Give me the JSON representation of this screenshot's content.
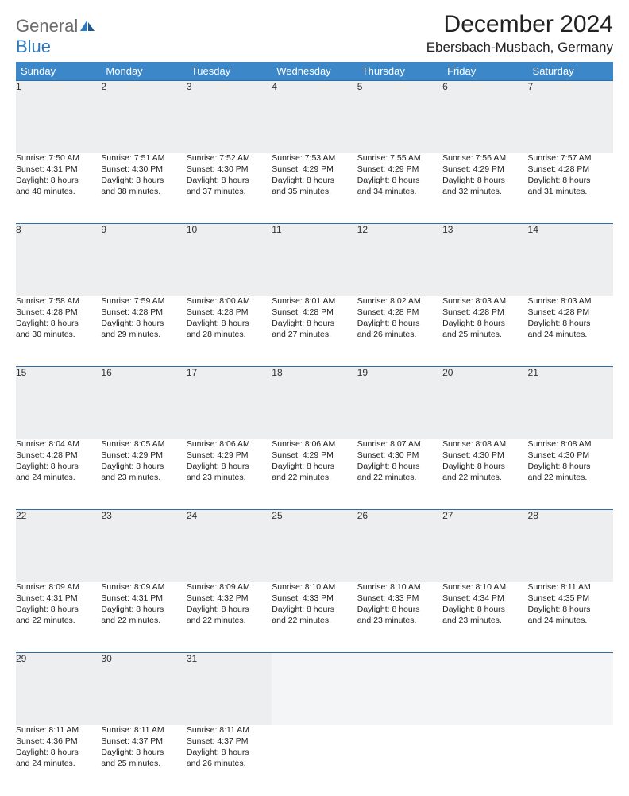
{
  "logo": {
    "part1": "General",
    "part2": "Blue"
  },
  "title": "December 2024",
  "location": "Ebersbach-Musbach, Germany",
  "colors": {
    "header_bg": "#3c87c7",
    "header_text": "#ffffff",
    "daynum_bg": "#eceef0",
    "border": "#2f6da3",
    "logo_gray": "#6b6b6b",
    "logo_blue": "#2f78bd"
  },
  "day_headers": [
    "Sunday",
    "Monday",
    "Tuesday",
    "Wednesday",
    "Thursday",
    "Friday",
    "Saturday"
  ],
  "weeks": [
    {
      "nums": [
        "1",
        "2",
        "3",
        "4",
        "5",
        "6",
        "7"
      ],
      "cells": [
        {
          "sunrise": "Sunrise: 7:50 AM",
          "sunset": "Sunset: 4:31 PM",
          "day1": "Daylight: 8 hours",
          "day2": "and 40 minutes."
        },
        {
          "sunrise": "Sunrise: 7:51 AM",
          "sunset": "Sunset: 4:30 PM",
          "day1": "Daylight: 8 hours",
          "day2": "and 38 minutes."
        },
        {
          "sunrise": "Sunrise: 7:52 AM",
          "sunset": "Sunset: 4:30 PM",
          "day1": "Daylight: 8 hours",
          "day2": "and 37 minutes."
        },
        {
          "sunrise": "Sunrise: 7:53 AM",
          "sunset": "Sunset: 4:29 PM",
          "day1": "Daylight: 8 hours",
          "day2": "and 35 minutes."
        },
        {
          "sunrise": "Sunrise: 7:55 AM",
          "sunset": "Sunset: 4:29 PM",
          "day1": "Daylight: 8 hours",
          "day2": "and 34 minutes."
        },
        {
          "sunrise": "Sunrise: 7:56 AM",
          "sunset": "Sunset: 4:29 PM",
          "day1": "Daylight: 8 hours",
          "day2": "and 32 minutes."
        },
        {
          "sunrise": "Sunrise: 7:57 AM",
          "sunset": "Sunset: 4:28 PM",
          "day1": "Daylight: 8 hours",
          "day2": "and 31 minutes."
        }
      ]
    },
    {
      "nums": [
        "8",
        "9",
        "10",
        "11",
        "12",
        "13",
        "14"
      ],
      "cells": [
        {
          "sunrise": "Sunrise: 7:58 AM",
          "sunset": "Sunset: 4:28 PM",
          "day1": "Daylight: 8 hours",
          "day2": "and 30 minutes."
        },
        {
          "sunrise": "Sunrise: 7:59 AM",
          "sunset": "Sunset: 4:28 PM",
          "day1": "Daylight: 8 hours",
          "day2": "and 29 minutes."
        },
        {
          "sunrise": "Sunrise: 8:00 AM",
          "sunset": "Sunset: 4:28 PM",
          "day1": "Daylight: 8 hours",
          "day2": "and 28 minutes."
        },
        {
          "sunrise": "Sunrise: 8:01 AM",
          "sunset": "Sunset: 4:28 PM",
          "day1": "Daylight: 8 hours",
          "day2": "and 27 minutes."
        },
        {
          "sunrise": "Sunrise: 8:02 AM",
          "sunset": "Sunset: 4:28 PM",
          "day1": "Daylight: 8 hours",
          "day2": "and 26 minutes."
        },
        {
          "sunrise": "Sunrise: 8:03 AM",
          "sunset": "Sunset: 4:28 PM",
          "day1": "Daylight: 8 hours",
          "day2": "and 25 minutes."
        },
        {
          "sunrise": "Sunrise: 8:03 AM",
          "sunset": "Sunset: 4:28 PM",
          "day1": "Daylight: 8 hours",
          "day2": "and 24 minutes."
        }
      ]
    },
    {
      "nums": [
        "15",
        "16",
        "17",
        "18",
        "19",
        "20",
        "21"
      ],
      "cells": [
        {
          "sunrise": "Sunrise: 8:04 AM",
          "sunset": "Sunset: 4:28 PM",
          "day1": "Daylight: 8 hours",
          "day2": "and 24 minutes."
        },
        {
          "sunrise": "Sunrise: 8:05 AM",
          "sunset": "Sunset: 4:29 PM",
          "day1": "Daylight: 8 hours",
          "day2": "and 23 minutes."
        },
        {
          "sunrise": "Sunrise: 8:06 AM",
          "sunset": "Sunset: 4:29 PM",
          "day1": "Daylight: 8 hours",
          "day2": "and 23 minutes."
        },
        {
          "sunrise": "Sunrise: 8:06 AM",
          "sunset": "Sunset: 4:29 PM",
          "day1": "Daylight: 8 hours",
          "day2": "and 22 minutes."
        },
        {
          "sunrise": "Sunrise: 8:07 AM",
          "sunset": "Sunset: 4:30 PM",
          "day1": "Daylight: 8 hours",
          "day2": "and 22 minutes."
        },
        {
          "sunrise": "Sunrise: 8:08 AM",
          "sunset": "Sunset: 4:30 PM",
          "day1": "Daylight: 8 hours",
          "day2": "and 22 minutes."
        },
        {
          "sunrise": "Sunrise: 8:08 AM",
          "sunset": "Sunset: 4:30 PM",
          "day1": "Daylight: 8 hours",
          "day2": "and 22 minutes."
        }
      ]
    },
    {
      "nums": [
        "22",
        "23",
        "24",
        "25",
        "26",
        "27",
        "28"
      ],
      "cells": [
        {
          "sunrise": "Sunrise: 8:09 AM",
          "sunset": "Sunset: 4:31 PM",
          "day1": "Daylight: 8 hours",
          "day2": "and 22 minutes."
        },
        {
          "sunrise": "Sunrise: 8:09 AM",
          "sunset": "Sunset: 4:31 PM",
          "day1": "Daylight: 8 hours",
          "day2": "and 22 minutes."
        },
        {
          "sunrise": "Sunrise: 8:09 AM",
          "sunset": "Sunset: 4:32 PM",
          "day1": "Daylight: 8 hours",
          "day2": "and 22 minutes."
        },
        {
          "sunrise": "Sunrise: 8:10 AM",
          "sunset": "Sunset: 4:33 PM",
          "day1": "Daylight: 8 hours",
          "day2": "and 22 minutes."
        },
        {
          "sunrise": "Sunrise: 8:10 AM",
          "sunset": "Sunset: 4:33 PM",
          "day1": "Daylight: 8 hours",
          "day2": "and 23 minutes."
        },
        {
          "sunrise": "Sunrise: 8:10 AM",
          "sunset": "Sunset: 4:34 PM",
          "day1": "Daylight: 8 hours",
          "day2": "and 23 minutes."
        },
        {
          "sunrise": "Sunrise: 8:11 AM",
          "sunset": "Sunset: 4:35 PM",
          "day1": "Daylight: 8 hours",
          "day2": "and 24 minutes."
        }
      ]
    },
    {
      "nums": [
        "29",
        "30",
        "31",
        "",
        "",
        "",
        ""
      ],
      "cells": [
        {
          "sunrise": "Sunrise: 8:11 AM",
          "sunset": "Sunset: 4:36 PM",
          "day1": "Daylight: 8 hours",
          "day2": "and 24 minutes."
        },
        {
          "sunrise": "Sunrise: 8:11 AM",
          "sunset": "Sunset: 4:37 PM",
          "day1": "Daylight: 8 hours",
          "day2": "and 25 minutes."
        },
        {
          "sunrise": "Sunrise: 8:11 AM",
          "sunset": "Sunset: 4:37 PM",
          "day1": "Daylight: 8 hours",
          "day2": "and 26 minutes."
        },
        null,
        null,
        null,
        null
      ]
    }
  ]
}
